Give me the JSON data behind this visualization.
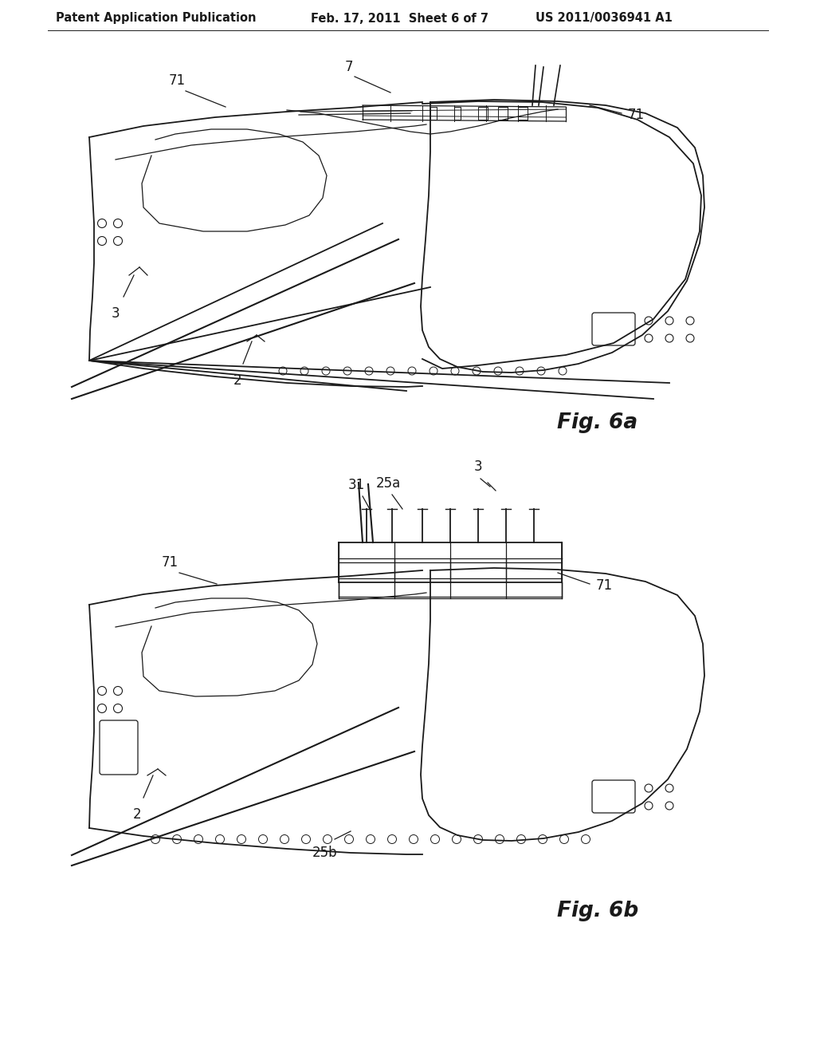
{
  "bg_color": "#ffffff",
  "line_color": "#1a1a1a",
  "header_left": "Patent Application Publication",
  "header_center": "Feb. 17, 2011  Sheet 6 of 7",
  "header_right": "US 2011/0036941 A1",
  "fig6a_label": "Fig. 6a",
  "fig6b_label": "Fig. 6b",
  "header_font_size": 10.5,
  "fig_label_font_size": 19,
  "annotation_font_size": 12
}
